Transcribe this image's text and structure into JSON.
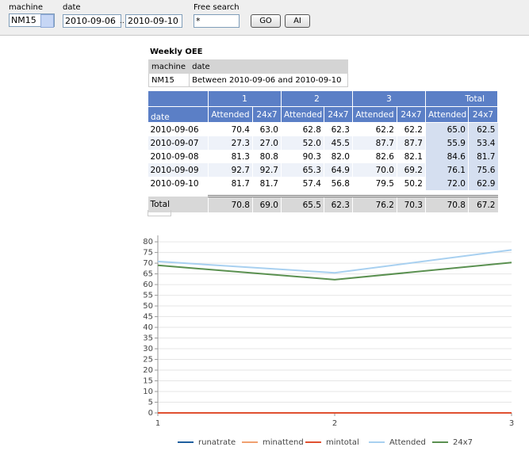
{
  "form": {
    "machine_label": "machine",
    "machine_value": "NM15",
    "date_label": "date",
    "date_from": "2010-09-06",
    "date_sep": "..",
    "date_to": "2010-09-10",
    "search_label": "Free search",
    "search_value": "*",
    "go": "GO",
    "ai": "AI"
  },
  "report": {
    "title": "Weekly OEE",
    "info_headers": [
      "machine",
      "date"
    ],
    "info_values": [
      "NM15",
      "Between 2010-09-06 and 2010-09-10"
    ],
    "groups": [
      "1",
      "2",
      "3",
      "Total"
    ],
    "row_header": "date",
    "subheaders": [
      "Attended",
      "24x7",
      "Attended",
      "24x7",
      "Attended",
      "24x7",
      "Attended",
      "24x7"
    ],
    "rows": [
      [
        "2010-09-06",
        "70.4",
        "63.0",
        "62.8",
        "62.3",
        "62.2",
        "62.2",
        "65.0",
        "62.5"
      ],
      [
        "2010-09-07",
        "27.3",
        "27.0",
        "52.0",
        "45.5",
        "87.7",
        "87.7",
        "55.9",
        "53.4"
      ],
      [
        "2010-09-08",
        "81.3",
        "80.8",
        "90.3",
        "82.0",
        "82.6",
        "82.1",
        "84.6",
        "81.7"
      ],
      [
        "2010-09-09",
        "92.7",
        "92.7",
        "65.3",
        "64.9",
        "70.0",
        "69.2",
        "76.1",
        "75.6"
      ],
      [
        "2010-09-10",
        "81.7",
        "81.7",
        "57.4",
        "56.8",
        "79.5",
        "50.2",
        "72.0",
        "62.9"
      ]
    ],
    "total_row": [
      "Total",
      "70.8",
      "69.0",
      "65.5",
      "62.3",
      "76.2",
      "70.3",
      "70.8",
      "67.2"
    ]
  },
  "chart_data": {
    "type": "line",
    "x": [
      1,
      2,
      3
    ],
    "xlim": [
      1,
      3
    ],
    "xticks": [
      1,
      2,
      3
    ],
    "ylim": [
      0,
      83
    ],
    "yticks": [
      0,
      5,
      10,
      15,
      20,
      25,
      30,
      35,
      40,
      45,
      50,
      55,
      60,
      65,
      70,
      75,
      80
    ],
    "grid": true,
    "legend": "bottom",
    "series": [
      {
        "name": "runatrate",
        "color": "#1f5f9f",
        "values": [
          0,
          0,
          0
        ]
      },
      {
        "name": "minattend",
        "color": "#f0a070",
        "values": [
          0,
          0,
          0
        ]
      },
      {
        "name": "mintotal",
        "color": "#e05030",
        "values": [
          0,
          0,
          0
        ]
      },
      {
        "name": "Attended",
        "color": "#a8d0f0",
        "values": [
          70.8,
          65.5,
          76.2
        ]
      },
      {
        "name": "24x7",
        "color": "#5a9050",
        "values": [
          69.0,
          62.3,
          70.3
        ]
      }
    ]
  }
}
